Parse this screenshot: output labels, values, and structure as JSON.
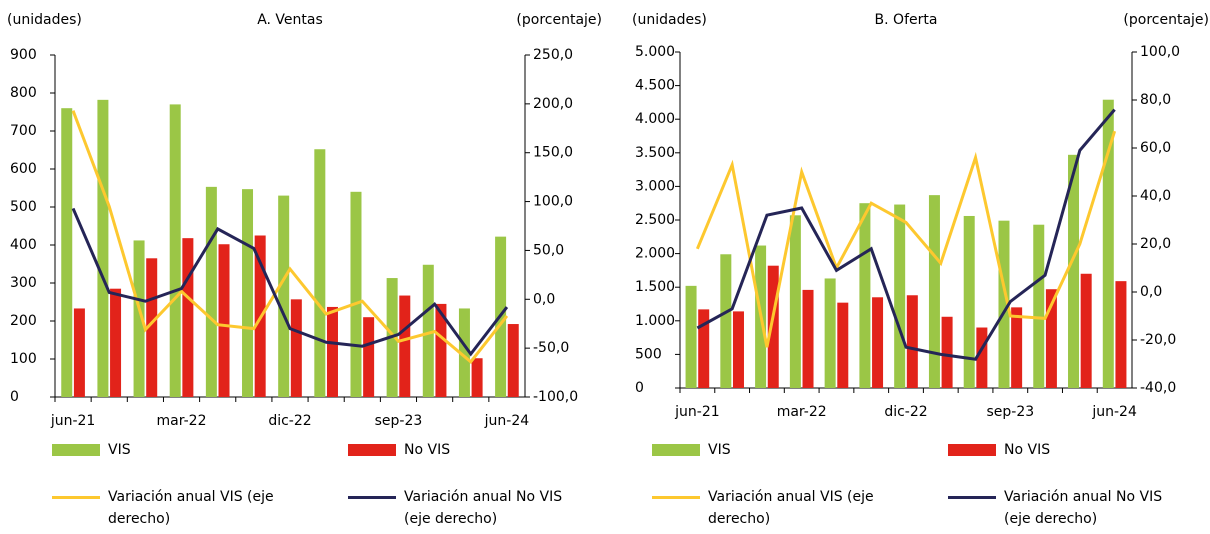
{
  "chart_data": [
    {
      "type": "bar_line",
      "title": "A. Ventas",
      "ylabel": "(unidades)",
      "y2label": "(porcentaje)",
      "categories": [
        "jun-21",
        null,
        null,
        "mar-22",
        null,
        null,
        "dic-22",
        null,
        null,
        "sep-23",
        null,
        null,
        "jun-24"
      ],
      "ylim": [
        0,
        900
      ],
      "yticks": [
        0,
        100,
        200,
        300,
        400,
        500,
        600,
        700,
        800,
        900
      ],
      "y2lim": [
        -100,
        250
      ],
      "y2ticks": [
        {
          "value": -100,
          "label": "-100,0"
        },
        {
          "value": -50,
          "label": "-50,0"
        },
        {
          "value": 0,
          "label": "0,0"
        },
        {
          "value": 50,
          "label": "50,0"
        },
        {
          "value": 100,
          "label": "100,0"
        },
        {
          "value": 150,
          "label": "150,0"
        },
        {
          "value": 200,
          "label": "200,0"
        },
        {
          "value": 250,
          "label": "250,0"
        }
      ],
      "series": [
        {
          "name": "VIS",
          "type": "bar",
          "color": "#9bc646",
          "values": [
            760,
            782,
            412,
            770,
            553,
            547,
            530,
            652,
            540,
            313,
            348,
            233,
            422
          ]
        },
        {
          "name": "No VIS",
          "type": "bar",
          "color": "#e2231a",
          "values": [
            233,
            285,
            365,
            418,
            402,
            425,
            257,
            237,
            210,
            267,
            245,
            102,
            192
          ]
        },
        {
          "name": "Variación anual VIS (eje derecho)",
          "type": "line",
          "axis": "y2",
          "color": "#fdc82f",
          "values": [
            193,
            95,
            -31,
            8,
            -26,
            -30,
            31,
            -15,
            -2,
            -43,
            -33,
            -64,
            -17
          ]
        },
        {
          "name": "Variación anual No VIS (eje derecho)",
          "type": "line",
          "axis": "y2",
          "color": "#252557",
          "values": [
            93,
            7,
            -2,
            11,
            72,
            52,
            -30,
            -44,
            -48,
            -36,
            -5,
            -56,
            -8
          ]
        }
      ]
    },
    {
      "type": "bar_line",
      "title": "B. Oferta",
      "ylabel": "(unidades)",
      "y2label": "(porcentaje)",
      "categories": [
        "jun-21",
        null,
        null,
        "mar-22",
        null,
        null,
        "dic-22",
        null,
        null,
        "sep-23",
        null,
        null,
        "jun-24"
      ],
      "ylim": [
        0,
        5000
      ],
      "yticks": [
        0,
        {
          "value": 500,
          "label": "500"
        },
        {
          "value": 1000,
          "label": "1.000"
        },
        {
          "value": 1500,
          "label": "1.500"
        },
        {
          "value": 2000,
          "label": "2.000"
        },
        {
          "value": 2500,
          "label": "2.500"
        },
        {
          "value": 3000,
          "label": "3.000"
        },
        {
          "value": 3500,
          "label": "3.500"
        },
        {
          "value": 4000,
          "label": "4.000"
        },
        {
          "value": 4500,
          "label": "4.500"
        },
        {
          "value": 5000,
          "label": "5.000"
        }
      ],
      "y2lim": [
        -40,
        100
      ],
      "y2ticks": [
        {
          "value": -40,
          "label": "-40,0"
        },
        {
          "value": -20,
          "label": "-20,0"
        },
        {
          "value": 0,
          "label": "0,0"
        },
        {
          "value": 20,
          "label": "20,0"
        },
        {
          "value": 40,
          "label": "40,0"
        },
        {
          "value": 60,
          "label": "60,0"
        },
        {
          "value": 80,
          "label": "80,0"
        },
        {
          "value": 100,
          "label": "100,0"
        }
      ],
      "series": [
        {
          "name": "VIS",
          "type": "bar",
          "color": "#9bc646",
          "values": [
            1520,
            1990,
            2120,
            2570,
            1630,
            2750,
            2730,
            2870,
            2560,
            2490,
            2430,
            3470,
            4290
          ]
        },
        {
          "name": "No VIS",
          "type": "bar",
          "color": "#e2231a",
          "values": [
            1170,
            1140,
            1820,
            1460,
            1270,
            1350,
            1380,
            1060,
            900,
            1200,
            1470,
            1700,
            1590
          ]
        },
        {
          "name": "Variación anual VIS (eje derecho)",
          "type": "line",
          "axis": "y2",
          "color": "#fdc82f",
          "values": [
            18,
            53,
            -23,
            50,
            10,
            37,
            29,
            12,
            56,
            -10,
            -11,
            20,
            67
          ]
        },
        {
          "name": "Variación anual No VIS (eje derecho)",
          "type": "line",
          "axis": "y2",
          "color": "#252557",
          "values": [
            -15,
            -7,
            32,
            35,
            9,
            18,
            -23,
            -26,
            -28,
            -4,
            7,
            59,
            76
          ]
        }
      ]
    }
  ]
}
